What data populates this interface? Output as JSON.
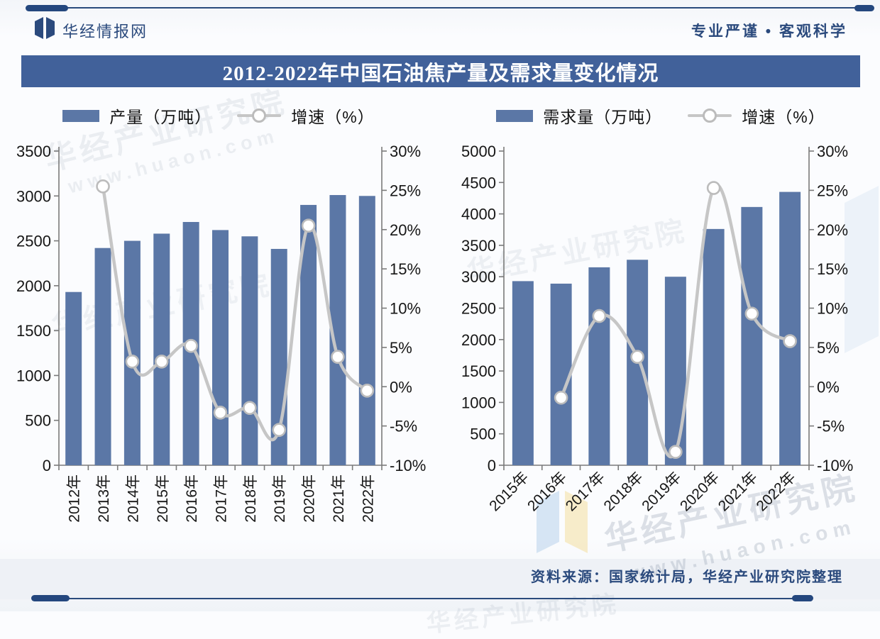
{
  "header": {
    "brand": "华经情报网",
    "slogan": "专业严谨 • 客观科学"
  },
  "title": "2012-2022年中国石油焦产量及需求量变化情况",
  "footer": {
    "source": "资料来源：国家统计局，华经产业研究院整理"
  },
  "watermark": {
    "name": "华经产业研究院",
    "url": "www.huaon.com"
  },
  "colors": {
    "bar": "#5b77a6",
    "line": "#c6c6c6",
    "marker_stroke": "#bcbcbc",
    "axis": "#7a7a7a",
    "navy": "#2b4a7d",
    "title_bg": "#41619a"
  },
  "chart_data": [
    {
      "type": "bar",
      "title": "产量及增速（左图）",
      "categories": [
        "2012年",
        "2013年",
        "2014年",
        "2015年",
        "2016年",
        "2017年",
        "2018年",
        "2019年",
        "2020年",
        "2021年",
        "2022年"
      ],
      "bar_series": {
        "name": "产量（万吨）",
        "values": [
          1930,
          2420,
          2500,
          2580,
          2710,
          2620,
          2550,
          2410,
          2900,
          3010,
          3000
        ]
      },
      "line_series": {
        "name": "增速（%）",
        "values": [
          null,
          25.5,
          3.2,
          3.2,
          5.2,
          -3.3,
          -2.7,
          -5.5,
          20.5,
          3.8,
          -0.5
        ]
      },
      "y_left": {
        "min": 0,
        "max": 3500,
        "step": 500
      },
      "y_right": {
        "min": -10,
        "max": 30,
        "step": 5,
        "suffix": "%"
      },
      "x_label_rotation": -90,
      "grid": false,
      "legend_position": "top"
    },
    {
      "type": "bar",
      "title": "需求量及增速（右图）",
      "categories": [
        "2015年",
        "2016年",
        "2017年",
        "2018年",
        "2019年",
        "2020年",
        "2021年",
        "2022年"
      ],
      "bar_series": {
        "name": "需求量（万吨）",
        "values": [
          2930,
          2890,
          3150,
          3270,
          3000,
          3760,
          4110,
          4350
        ]
      },
      "line_series": {
        "name": "增速（%）",
        "values": [
          null,
          -1.4,
          9.0,
          3.8,
          -8.3,
          25.3,
          9.3,
          5.8
        ]
      },
      "y_left": {
        "min": 0,
        "max": 5000,
        "step": 500
      },
      "y_right": {
        "min": -10,
        "max": 30,
        "step": 5,
        "suffix": "%"
      },
      "x_label_rotation": -45,
      "grid": false,
      "legend_position": "top"
    }
  ]
}
